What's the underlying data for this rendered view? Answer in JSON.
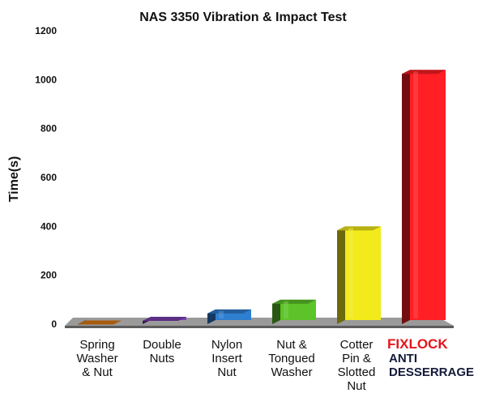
{
  "chart_data": {
    "type": "bar",
    "title": "NAS 3350 Vibration & Impact Test",
    "ylabel": "Time(s)",
    "xlabel": "",
    "ylim": [
      0,
      1200
    ],
    "yticks": [
      "0",
      "200",
      "400",
      "600",
      "800",
      "1000",
      "1200"
    ],
    "categories": [
      [
        "Spring",
        "Washer",
        "& Nut"
      ],
      [
        "Double",
        "Nuts"
      ],
      [
        "Nylon",
        "Insert",
        "Nut"
      ],
      [
        "Nut &",
        "Tongued",
        "Washer"
      ],
      [
        "Cotter",
        "Pin &",
        "Slotted",
        "Nut"
      ],
      [
        "FIXLOCK",
        "ANTI",
        "DESSERRAGE"
      ]
    ],
    "values": [
      15,
      30,
      60,
      100,
      400,
      1040
    ],
    "colors": [
      "#e07a12",
      "#7b3fb0",
      "#2f7fd0",
      "#5cc428",
      "#f2ea1a",
      "#ff1f24"
    ],
    "grid": false,
    "legend": "none"
  }
}
